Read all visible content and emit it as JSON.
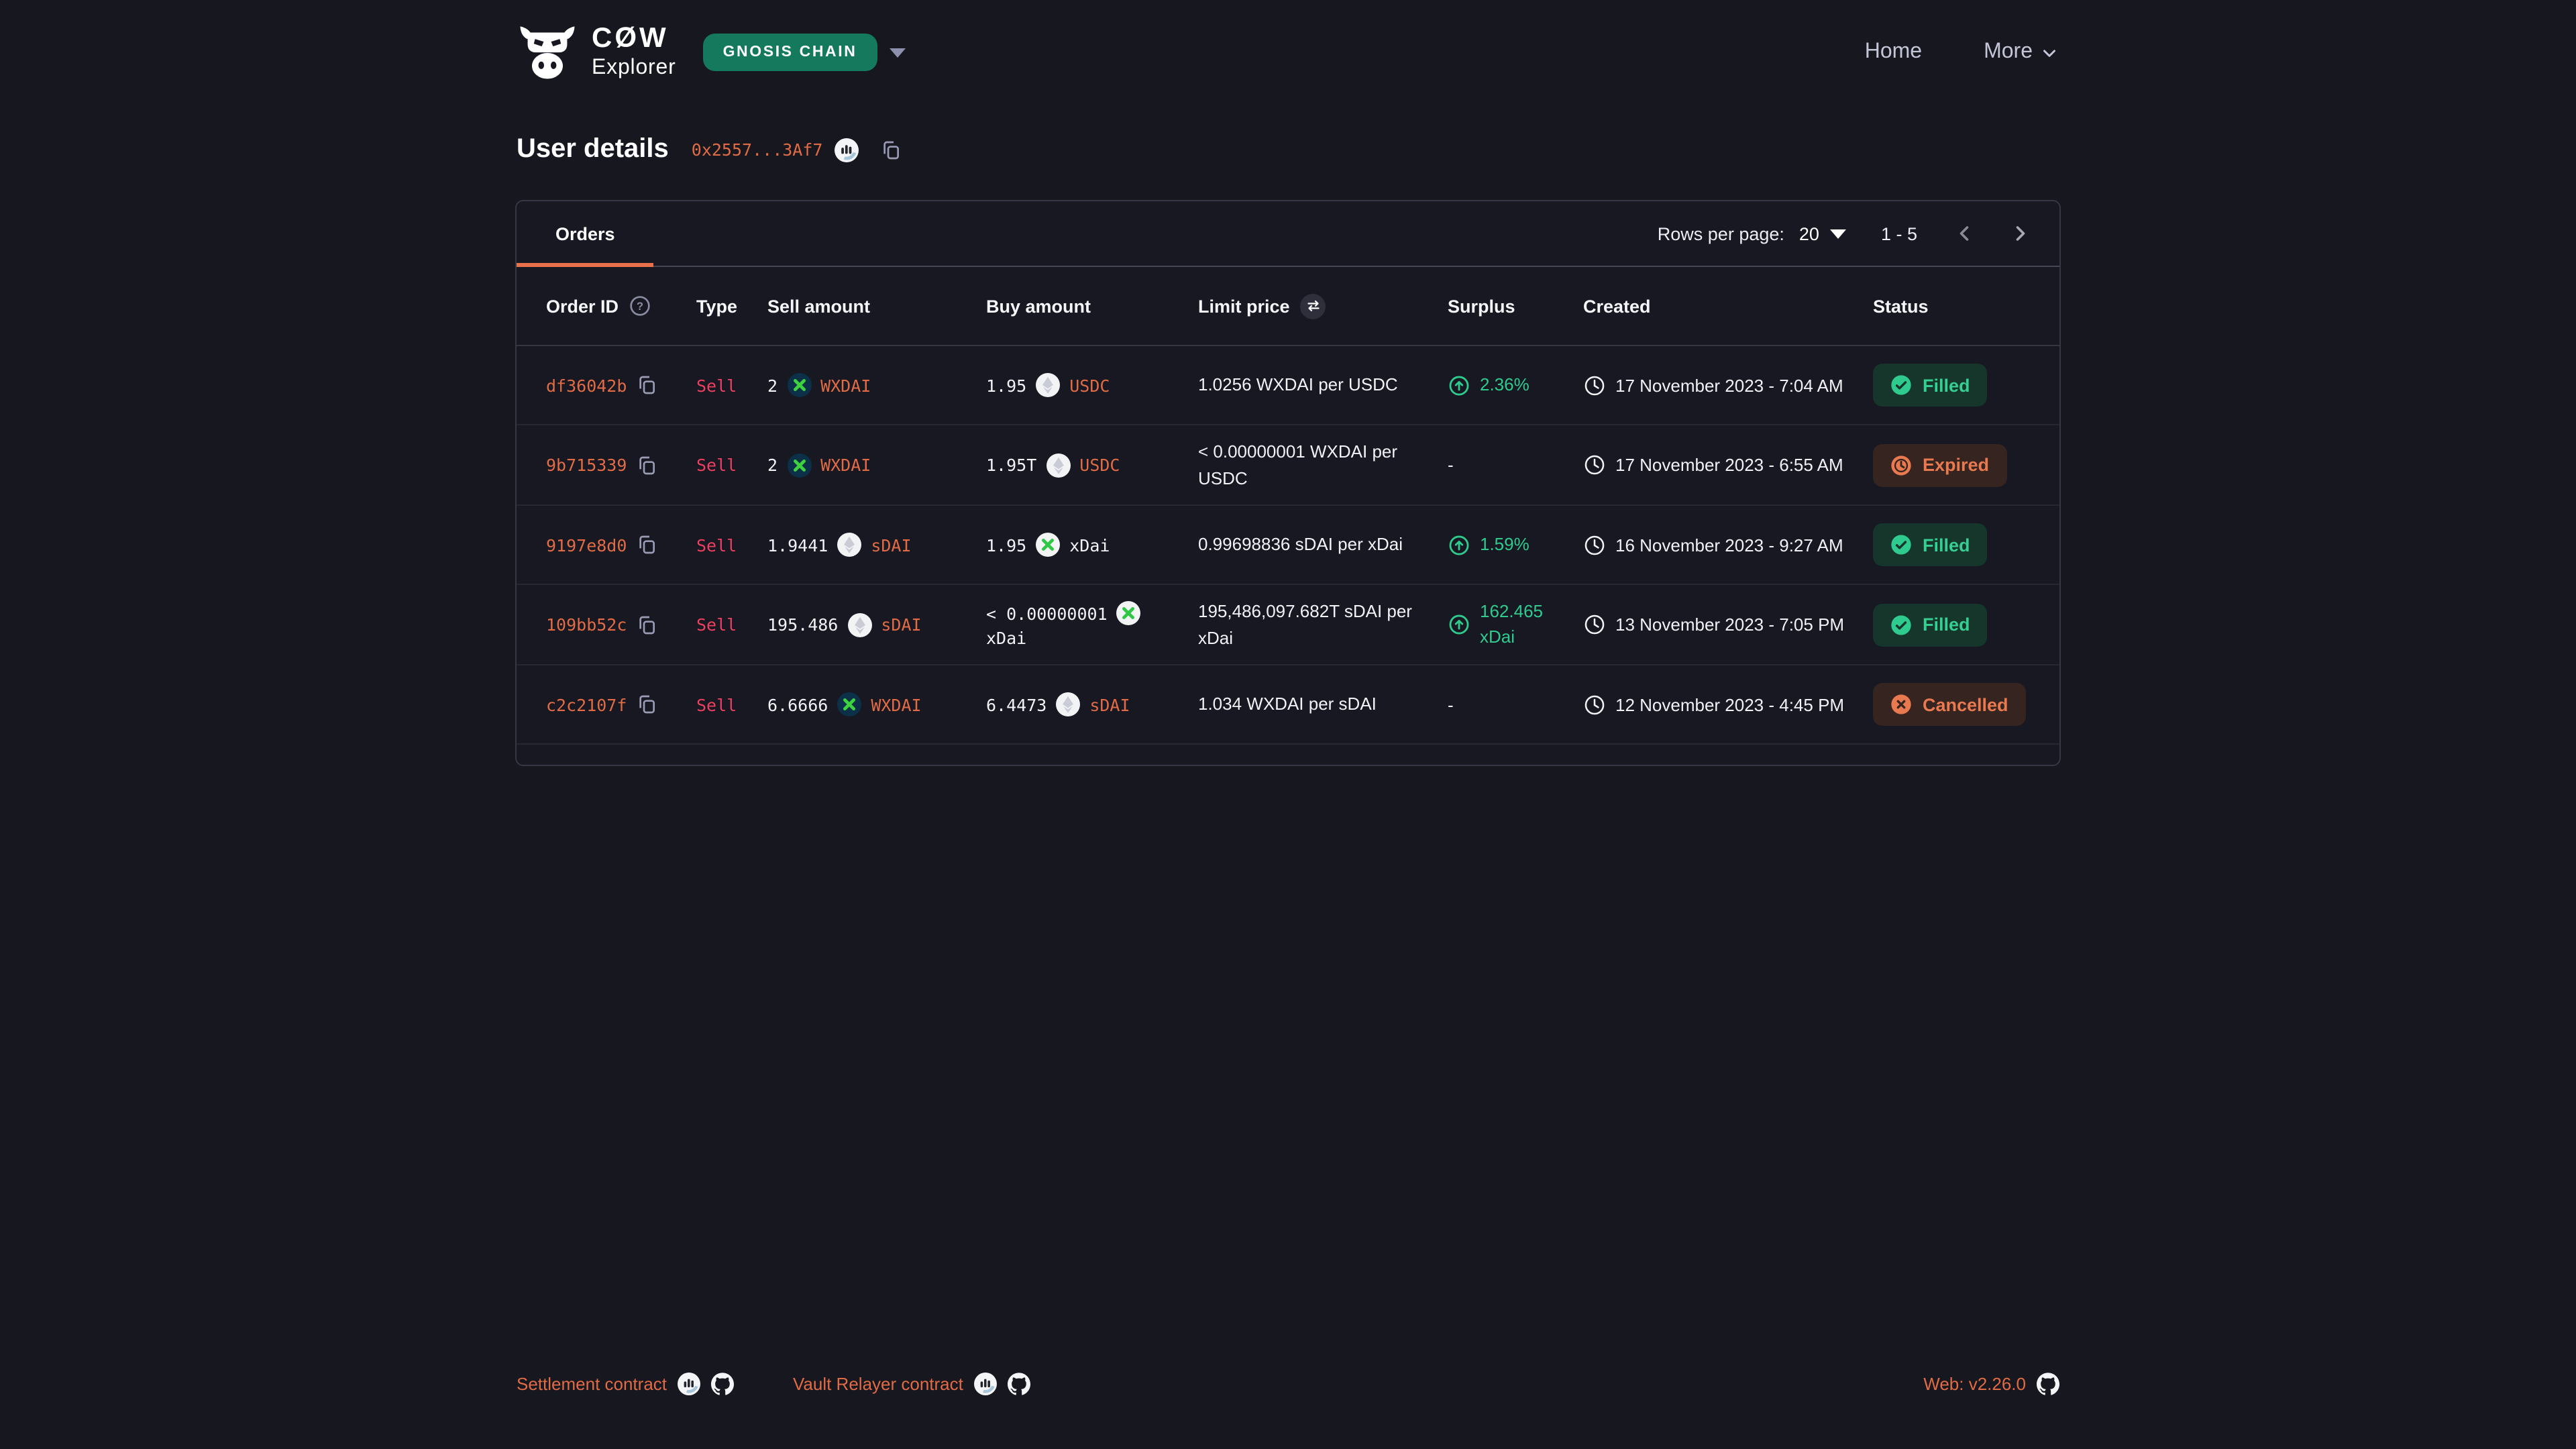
{
  "header": {
    "logo": {
      "title": "CØW",
      "subtitle": "Explorer"
    },
    "network_badge": "GNOSIS CHAIN",
    "nav": [
      {
        "label": "Home"
      },
      {
        "label": "More"
      }
    ]
  },
  "page": {
    "title": "User details",
    "address": "0x2557...3Af7"
  },
  "orders_panel": {
    "tab": "Orders",
    "rows_per_page_label": "Rows per page:",
    "rows_per_page_value": "20",
    "page_range": "1 - 5",
    "columns": [
      "Order ID",
      "Type",
      "Sell amount",
      "Buy amount",
      "Limit price",
      "Surplus",
      "Created",
      "Status"
    ],
    "rows": [
      {
        "id": "df36042b",
        "type": "Sell",
        "sell": {
          "amount": "2",
          "token": "WXDAI",
          "icon": "wxdai",
          "link": true
        },
        "buy": {
          "amount": "1.95",
          "token": "USDC",
          "icon": "generic",
          "link": true
        },
        "limit_price": "1.0256 WXDAI per USDC",
        "surplus": "2.36%",
        "created": "17 November 2023 - 7:04 AM",
        "status": "Filled"
      },
      {
        "id": "9b715339",
        "type": "Sell",
        "sell": {
          "amount": "2",
          "token": "WXDAI",
          "icon": "wxdai",
          "link": true
        },
        "buy": {
          "amount": "1.95T",
          "token": "USDC",
          "icon": "generic",
          "link": true
        },
        "limit_price": "< 0.00000001 WXDAI per USDC",
        "surplus": "-",
        "created": "17 November 2023 - 6:55 AM",
        "status": "Expired"
      },
      {
        "id": "9197e8d0",
        "type": "Sell",
        "sell": {
          "amount": "1.9441",
          "token": "sDAI",
          "icon": "generic",
          "link": true
        },
        "buy": {
          "amount": "1.95",
          "token": "xDai",
          "icon": "xdai",
          "link": false
        },
        "limit_price": "0.99698836 sDAI per xDai",
        "surplus": "1.59%",
        "created": "16 November 2023 - 9:27 AM",
        "status": "Filled"
      },
      {
        "id": "109bb52c",
        "type": "Sell",
        "sell": {
          "amount": "195.486",
          "token": "sDAI",
          "icon": "generic",
          "link": true
        },
        "buy": {
          "amount": "< 0.00000001",
          "token": "xDai",
          "icon": "xdai",
          "link": false
        },
        "limit_price": "195,486,097.682T sDAI per xDai",
        "surplus": "162.465 xDai",
        "created": "13 November 2023 - 7:05 PM",
        "status": "Filled"
      },
      {
        "id": "c2c2107f",
        "type": "Sell",
        "sell": {
          "amount": "6.6666",
          "token": "WXDAI",
          "icon": "wxdai",
          "link": true
        },
        "buy": {
          "amount": "6.4473",
          "token": "sDAI",
          "icon": "generic",
          "link": true
        },
        "limit_price": "1.034 WXDAI per sDAI",
        "surplus": "-",
        "created": "12 November 2023 - 4:45 PM",
        "status": "Cancelled"
      }
    ]
  },
  "footer": {
    "settlement_label": "Settlement contract",
    "vault_label": "Vault Relayer contract",
    "version": "Web: v2.26.0"
  },
  "colors": {
    "background": "#16171f",
    "accent_orange": "#e06b45",
    "tab_underline": "#e8704a",
    "sell_pink": "#ec4060",
    "success_green": "#2fcb8e",
    "badge_green_bg": "#16352b",
    "badge_orange_bg": "#362420",
    "badge_orange_text": "#e9794f",
    "network_badge_green": "#15795e"
  }
}
